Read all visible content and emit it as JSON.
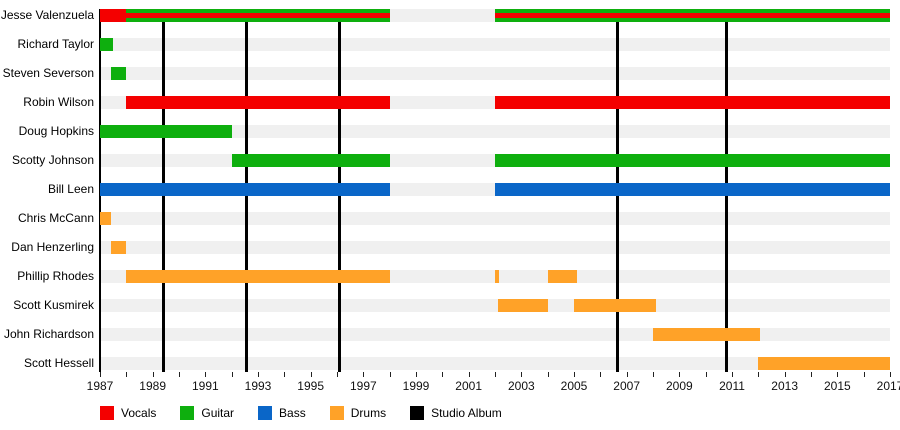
{
  "chart_data": {
    "type": "timeline",
    "description": "Band members timeline with instrument roles and studio album release markers",
    "x_axis": {
      "start": 1987,
      "end": 2017,
      "tick_interval": 1,
      "label_interval": 2,
      "tick_labels": [
        "1987",
        "1989",
        "1991",
        "1993",
        "1995",
        "1997",
        "1999",
        "2001",
        "2003",
        "2005",
        "2007",
        "2009",
        "2011",
        "2013",
        "2015",
        "2017"
      ]
    },
    "colors": {
      "vocals": "#F40000",
      "guitar": "#0EAF0E",
      "bass": "#0A66C8",
      "drums": "#FFA228",
      "studio_album": "#000000",
      "row_track": "#F0F0F0"
    },
    "members": [
      {
        "name": "Jesse Valenzuela",
        "segments": [
          {
            "start": 1987,
            "end": 1988,
            "roles": [
              "vocals"
            ]
          },
          {
            "start": 1988,
            "end": 1998,
            "roles": [
              "guitar",
              "vocals"
            ]
          },
          {
            "start": 2002,
            "end": 2017,
            "roles": [
              "guitar",
              "vocals"
            ]
          }
        ]
      },
      {
        "name": "Richard Taylor",
        "segments": [
          {
            "start": 1987,
            "end": 1987.5,
            "roles": [
              "guitar"
            ]
          }
        ]
      },
      {
        "name": "Steven Severson",
        "segments": [
          {
            "start": 1987.4,
            "end": 1988,
            "roles": [
              "guitar"
            ]
          }
        ]
      },
      {
        "name": "Robin Wilson",
        "segments": [
          {
            "start": 1988,
            "end": 1998,
            "roles": [
              "vocals"
            ]
          },
          {
            "start": 2002,
            "end": 2017,
            "roles": [
              "vocals"
            ]
          }
        ]
      },
      {
        "name": "Doug Hopkins",
        "segments": [
          {
            "start": 1987,
            "end": 1992,
            "roles": [
              "guitar"
            ]
          }
        ]
      },
      {
        "name": "Scotty Johnson",
        "segments": [
          {
            "start": 1992,
            "end": 1998,
            "roles": [
              "guitar"
            ]
          },
          {
            "start": 2002,
            "end": 2017,
            "roles": [
              "guitar"
            ]
          }
        ]
      },
      {
        "name": "Bill Leen",
        "segments": [
          {
            "start": 1987,
            "end": 1998,
            "roles": [
              "bass"
            ]
          },
          {
            "start": 2002,
            "end": 2017,
            "roles": [
              "bass"
            ]
          }
        ]
      },
      {
        "name": "Chris McCann",
        "segments": [
          {
            "start": 1987,
            "end": 1987.4,
            "roles": [
              "drums"
            ]
          }
        ]
      },
      {
        "name": "Dan Henzerling",
        "segments": [
          {
            "start": 1987.4,
            "end": 1988,
            "roles": [
              "drums"
            ]
          }
        ]
      },
      {
        "name": "Phillip Rhodes",
        "segments": [
          {
            "start": 1988,
            "end": 1998,
            "roles": [
              "drums"
            ]
          },
          {
            "start": 2002,
            "end": 2002.15,
            "roles": [
              "drums"
            ]
          },
          {
            "start": 2004,
            "end": 2005.1,
            "roles": [
              "drums"
            ]
          }
        ]
      },
      {
        "name": "Scott Kusmirek",
        "segments": [
          {
            "start": 2002.1,
            "end": 2004,
            "roles": [
              "drums"
            ]
          },
          {
            "start": 2005,
            "end": 2008.1,
            "roles": [
              "drums"
            ]
          }
        ]
      },
      {
        "name": "John Richardson",
        "segments": [
          {
            "start": 2008,
            "end": 2012.05,
            "roles": [
              "drums"
            ]
          }
        ]
      },
      {
        "name": "Scott Hessell",
        "segments": [
          {
            "start": 2012,
            "end": 2017,
            "roles": [
              "drums"
            ]
          }
        ]
      }
    ],
    "albums": [
      1989.4,
      1992.55,
      1996.1,
      2006.65,
      2010.8
    ],
    "legend": [
      {
        "label": "Vocals",
        "role": "vocals"
      },
      {
        "label": "Guitar",
        "role": "guitar"
      },
      {
        "label": "Bass",
        "role": "bass"
      },
      {
        "label": "Drums",
        "role": "drums"
      },
      {
        "label": "Studio Album",
        "role": "studio_album"
      }
    ]
  }
}
